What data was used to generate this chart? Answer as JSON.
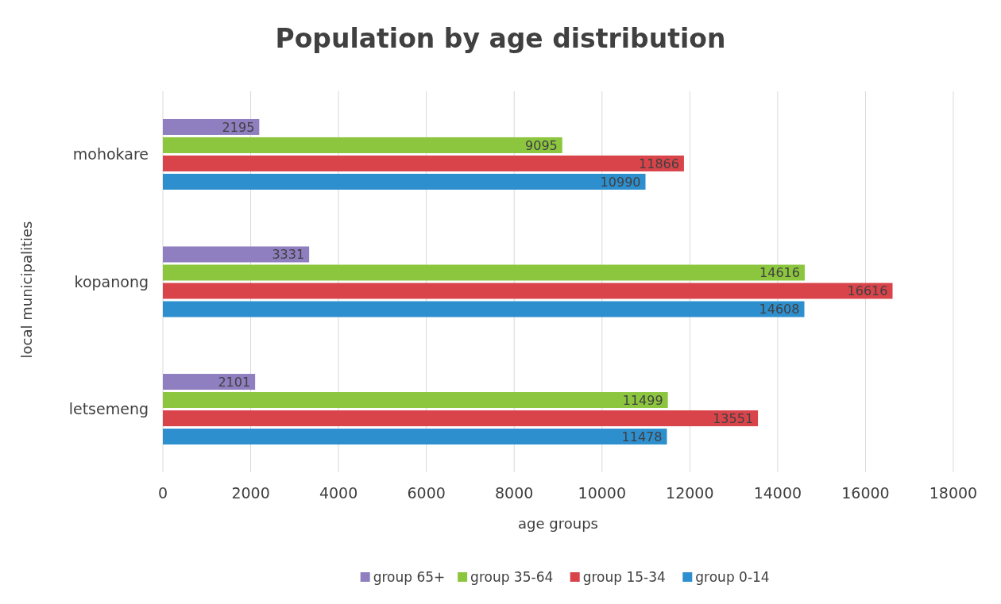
{
  "chart_data": {
    "type": "bar",
    "orientation": "horizontal",
    "title": "Population by age distribution",
    "xlabel": "age groups",
    "ylabel": "local municipalities",
    "categories": [
      "mohokare",
      "kopanong",
      "letsemeng"
    ],
    "series": [
      {
        "name": "group 65+",
        "color": "#8f7fc0",
        "values": [
          2195,
          3331,
          2101
        ]
      },
      {
        "name": "group 35-64",
        "color": "#8cc63f",
        "values": [
          9095,
          14616,
          11499
        ]
      },
      {
        "name": "group 15-34",
        "color": "#d9444b",
        "values": [
          11866,
          16616,
          13551
        ]
      },
      {
        "name": "group 0-14",
        "color": "#2e8fcf",
        "values": [
          10990,
          14608,
          11478
        ]
      }
    ],
    "xlim": [
      0,
      18000
    ],
    "xticks": [
      0,
      2000,
      4000,
      6000,
      8000,
      10000,
      12000,
      14000,
      16000,
      18000
    ],
    "grid": "x",
    "legend": "bottom",
    "data_labels": true
  }
}
